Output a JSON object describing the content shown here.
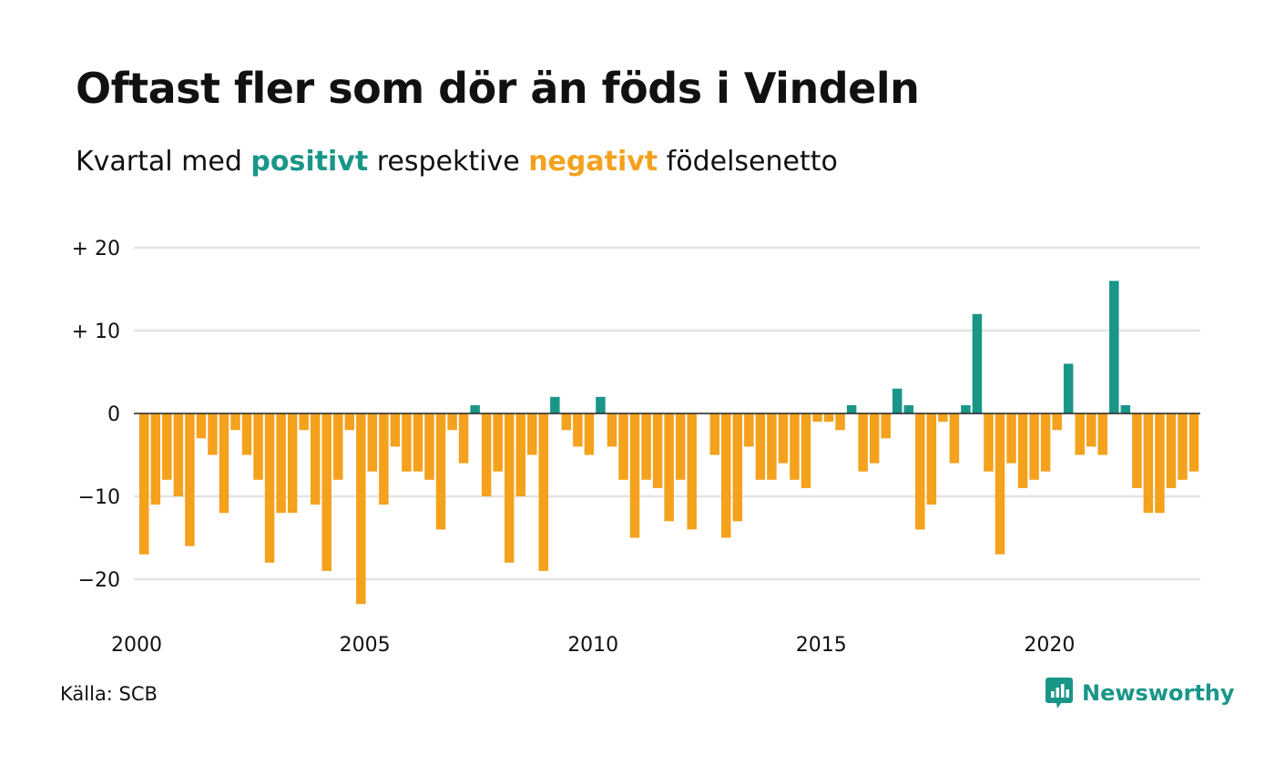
{
  "title": "Oftast fler som dör än föds i Vindeln",
  "subtitle": {
    "prefix": "Kvartal med ",
    "positive_word": "positivt",
    "middle": " respektive ",
    "negative_word": "negativt",
    "suffix": " födelsenetto"
  },
  "source": "Källa: SCB",
  "brand": {
    "name": "Newsworthy",
    "icon": "newsworthy-logo-icon"
  },
  "colors": {
    "positive": "#1a9688",
    "negative": "#f4a11d",
    "grid": "#e3e3e3",
    "zero_line": "#222222"
  },
  "chart_data": {
    "type": "bar",
    "xlabel": "",
    "ylabel": "",
    "ylim": [
      -25,
      20
    ],
    "y_ticks": [
      {
        "value": 20,
        "label": "+ 20"
      },
      {
        "value": 10,
        "label": "+ 10"
      },
      {
        "value": 0,
        "label": "0"
      },
      {
        "value": -10,
        "label": "−10"
      },
      {
        "value": -20,
        "label": "−20"
      }
    ],
    "x_start": "2000 Q1",
    "x_ticks": [
      "2000",
      "2005",
      "2010",
      "2015",
      "2020"
    ],
    "values": [
      -17,
      -11,
      -8,
      -10,
      -16,
      -3,
      -5,
      -12,
      -2,
      -5,
      -8,
      -18,
      -12,
      -12,
      -2,
      -11,
      -19,
      -8,
      -2,
      -23,
      -7,
      -11,
      -4,
      -7,
      -7,
      -8,
      -14,
      -2,
      -6,
      1,
      -10,
      -7,
      -18,
      -10,
      -5,
      -19,
      2,
      -2,
      -4,
      -5,
      2,
      -4,
      -8,
      -15,
      -8,
      -9,
      -13,
      -8,
      -14,
      0,
      -5,
      -15,
      -13,
      -4,
      -8,
      -8,
      -6,
      -8,
      -9,
      -1,
      -1,
      -2,
      1,
      -7,
      -6,
      -3,
      3,
      1,
      -14,
      -11,
      -1,
      -6,
      1,
      12,
      -7,
      -17,
      -6,
      -9,
      -8,
      -7,
      -2,
      6,
      -5,
      -4,
      -5,
      16,
      1,
      -9,
      -12,
      -12,
      -9,
      -8,
      -7
    ]
  }
}
